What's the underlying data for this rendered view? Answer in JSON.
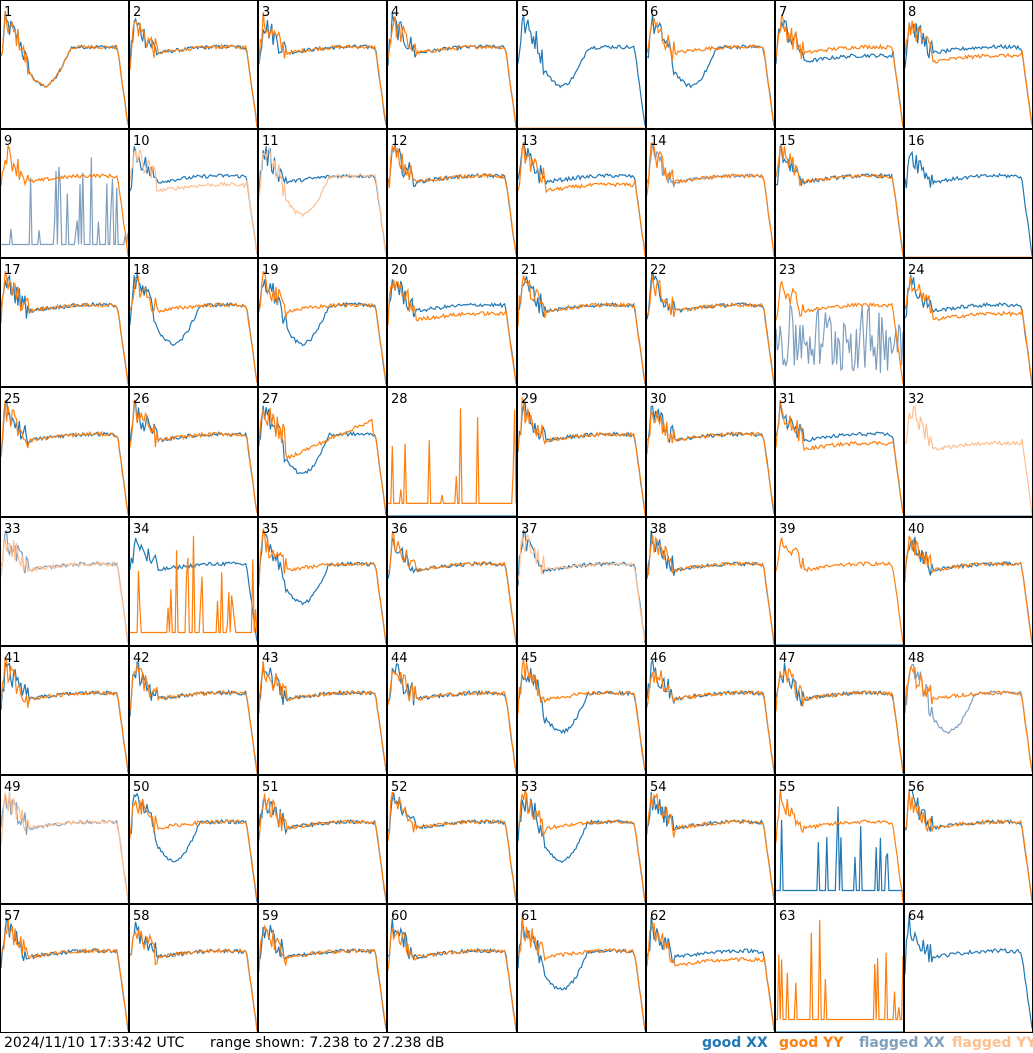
{
  "footer": {
    "timestamp": "2024/11/10 17:33:42 UTC",
    "range_text": "range shown: 7.238 to 27.238 dB"
  },
  "legend": [
    {
      "label": "good XX",
      "color": "#1f77b4"
    },
    {
      "label": "good YY",
      "color": "#ff7f0e"
    },
    {
      "label": "flagged XX",
      "color": "#7f9fbf"
    },
    {
      "label": "flagged YY",
      "color": "#ffbf8f"
    }
  ],
  "chart_data": {
    "type": "line",
    "grid": "8x8 small multiples, one spectrum panel per input",
    "ylim": [
      7.238,
      27.238
    ],
    "yunit": "dB",
    "panels": [
      {
        "id": "1",
        "xx": "good",
        "yy": "good",
        "xx_shape": "dip",
        "yy_shape": "dip"
      },
      {
        "id": "2",
        "xx": "good",
        "yy": "good",
        "xx_shape": "normal",
        "yy_shape": "normal"
      },
      {
        "id": "3",
        "xx": "good",
        "yy": "good",
        "xx_shape": "normal",
        "yy_shape": "normal"
      },
      {
        "id": "4",
        "xx": "good",
        "yy": "good",
        "xx_shape": "normal",
        "yy_shape": "normal"
      },
      {
        "id": "5",
        "xx": "good",
        "yy": "flagged",
        "xx_shape": "dip",
        "yy_shape": "zero"
      },
      {
        "id": "6",
        "xx": "good",
        "yy": "good",
        "xx_shape": "dip",
        "yy_shape": "normal"
      },
      {
        "id": "7",
        "xx": "good",
        "yy": "good",
        "xx_shape": "low",
        "yy_shape": "normal"
      },
      {
        "id": "8",
        "xx": "good",
        "yy": "good",
        "xx_shape": "normal",
        "yy_shape": "low"
      },
      {
        "id": "9",
        "xx": "flagged",
        "yy": "good",
        "xx_shape": "spiky-low",
        "yy_shape": "normal"
      },
      {
        "id": "10",
        "xx": "good",
        "yy": "flagged",
        "xx_shape": "normal",
        "yy_shape": "low"
      },
      {
        "id": "11",
        "xx": "good",
        "yy": "flagged",
        "xx_shape": "normal",
        "yy_shape": "dip"
      },
      {
        "id": "12",
        "xx": "good",
        "yy": "good",
        "xx_shape": "normal",
        "yy_shape": "normal"
      },
      {
        "id": "13",
        "xx": "good",
        "yy": "good",
        "xx_shape": "normal",
        "yy_shape": "low"
      },
      {
        "id": "14",
        "xx": "flagged",
        "yy": "good",
        "xx_shape": "normal",
        "yy_shape": "normal"
      },
      {
        "id": "15",
        "xx": "good",
        "yy": "good",
        "xx_shape": "normal",
        "yy_shape": "normal"
      },
      {
        "id": "16",
        "xx": "good",
        "yy": "flagged",
        "xx_shape": "normal",
        "yy_shape": "zero"
      },
      {
        "id": "17",
        "xx": "good",
        "yy": "good",
        "xx_shape": "normal",
        "yy_shape": "normal"
      },
      {
        "id": "18",
        "xx": "good",
        "yy": "good",
        "xx_shape": "dip",
        "yy_shape": "normal"
      },
      {
        "id": "19",
        "xx": "good",
        "yy": "good",
        "xx_shape": "dip",
        "yy_shape": "normal"
      },
      {
        "id": "20",
        "xx": "good",
        "yy": "good",
        "xx_shape": "normal",
        "yy_shape": "low"
      },
      {
        "id": "21",
        "xx": "good",
        "yy": "good",
        "xx_shape": "normal",
        "yy_shape": "normal"
      },
      {
        "id": "22",
        "xx": "good",
        "yy": "good",
        "xx_shape": "normal",
        "yy_shape": "normal"
      },
      {
        "id": "23",
        "xx": "flagged",
        "yy": "good",
        "xx_shape": "spiky",
        "yy_shape": "normal"
      },
      {
        "id": "24",
        "xx": "good",
        "yy": "good",
        "xx_shape": "normal",
        "yy_shape": "low"
      },
      {
        "id": "25",
        "xx": "good",
        "yy": "good",
        "xx_shape": "normal",
        "yy_shape": "normal"
      },
      {
        "id": "26",
        "xx": "good",
        "yy": "good",
        "xx_shape": "normal",
        "yy_shape": "normal"
      },
      {
        "id": "27",
        "xx": "good",
        "yy": "good",
        "xx_shape": "dip",
        "yy_shape": "rising"
      },
      {
        "id": "28",
        "xx": "good",
        "yy": "good",
        "xx_shape": "zero",
        "yy_shape": "spikes"
      },
      {
        "id": "29",
        "xx": "good",
        "yy": "good",
        "xx_shape": "normal",
        "yy_shape": "normal"
      },
      {
        "id": "30",
        "xx": "good",
        "yy": "good",
        "xx_shape": "normal",
        "yy_shape": "normal"
      },
      {
        "id": "31",
        "xx": "good",
        "yy": "good",
        "xx_shape": "normal",
        "yy_shape": "low"
      },
      {
        "id": "32",
        "xx": "flagged",
        "yy": "flagged",
        "xx_shape": "zero",
        "yy_shape": "low"
      },
      {
        "id": "33",
        "xx": "flagged",
        "yy": "flagged",
        "xx_shape": "normal",
        "yy_shape": "normal"
      },
      {
        "id": "34",
        "xx": "good",
        "yy": "good",
        "xx_shape": "normal",
        "yy_shape": "spikes"
      },
      {
        "id": "35",
        "xx": "good",
        "yy": "good",
        "xx_shape": "dip",
        "yy_shape": "normal"
      },
      {
        "id": "36",
        "xx": "good",
        "yy": "good",
        "xx_shape": "normal",
        "yy_shape": "normal"
      },
      {
        "id": "37",
        "xx": "good",
        "yy": "flagged",
        "xx_shape": "normal",
        "yy_shape": "normal"
      },
      {
        "id": "38",
        "xx": "good",
        "yy": "good",
        "xx_shape": "normal",
        "yy_shape": "normal"
      },
      {
        "id": "39",
        "xx": "good",
        "yy": "good",
        "xx_shape": "zero",
        "yy_shape": "normal"
      },
      {
        "id": "40",
        "xx": "good",
        "yy": "good",
        "xx_shape": "normal",
        "yy_shape": "normal"
      },
      {
        "id": "41",
        "xx": "good",
        "yy": "good",
        "xx_shape": "normal",
        "yy_shape": "normal"
      },
      {
        "id": "42",
        "xx": "good",
        "yy": "good",
        "xx_shape": "normal",
        "yy_shape": "normal"
      },
      {
        "id": "43",
        "xx": "good",
        "yy": "good",
        "xx_shape": "normal",
        "yy_shape": "normal"
      },
      {
        "id": "44",
        "xx": "good",
        "yy": "good",
        "xx_shape": "normal",
        "yy_shape": "normal"
      },
      {
        "id": "45",
        "xx": "good",
        "yy": "good",
        "xx_shape": "dip",
        "yy_shape": "normal"
      },
      {
        "id": "46",
        "xx": "good",
        "yy": "good",
        "xx_shape": "normal",
        "yy_shape": "normal"
      },
      {
        "id": "47",
        "xx": "good",
        "yy": "good",
        "xx_shape": "normal",
        "yy_shape": "normal"
      },
      {
        "id": "48",
        "xx": "flagged",
        "yy": "good",
        "xx_shape": "dip",
        "yy_shape": "normal"
      },
      {
        "id": "49",
        "xx": "flagged",
        "yy": "flagged",
        "xx_shape": "normal",
        "yy_shape": "normal"
      },
      {
        "id": "50",
        "xx": "good",
        "yy": "good",
        "xx_shape": "dip",
        "yy_shape": "normal"
      },
      {
        "id": "51",
        "xx": "good",
        "yy": "good",
        "xx_shape": "normal",
        "yy_shape": "normal"
      },
      {
        "id": "52",
        "xx": "good",
        "yy": "good",
        "xx_shape": "normal",
        "yy_shape": "normal"
      },
      {
        "id": "53",
        "xx": "good",
        "yy": "good",
        "xx_shape": "dip",
        "yy_shape": "normal"
      },
      {
        "id": "54",
        "xx": "good",
        "yy": "good",
        "xx_shape": "normal",
        "yy_shape": "normal"
      },
      {
        "id": "55",
        "xx": "good",
        "yy": "good",
        "xx_shape": "spiky-low",
        "yy_shape": "normal"
      },
      {
        "id": "56",
        "xx": "good",
        "yy": "good",
        "xx_shape": "normal",
        "yy_shape": "normal"
      },
      {
        "id": "57",
        "xx": "good",
        "yy": "good",
        "xx_shape": "normal",
        "yy_shape": "normal"
      },
      {
        "id": "58",
        "xx": "good",
        "yy": "good",
        "xx_shape": "normal",
        "yy_shape": "normal"
      },
      {
        "id": "59",
        "xx": "good",
        "yy": "good",
        "xx_shape": "normal",
        "yy_shape": "normal"
      },
      {
        "id": "60",
        "xx": "good",
        "yy": "good",
        "xx_shape": "normal",
        "yy_shape": "normal"
      },
      {
        "id": "61",
        "xx": "good",
        "yy": "good",
        "xx_shape": "dip",
        "yy_shape": "normal"
      },
      {
        "id": "62",
        "xx": "good",
        "yy": "good",
        "xx_shape": "normal",
        "yy_shape": "low"
      },
      {
        "id": "63",
        "xx": "good",
        "yy": "good",
        "xx_shape": "zero",
        "yy_shape": "spikes"
      },
      {
        "id": "64",
        "xx": "good",
        "yy": "flagged",
        "xx_shape": "normal",
        "yy_shape": "zero"
      }
    ]
  }
}
